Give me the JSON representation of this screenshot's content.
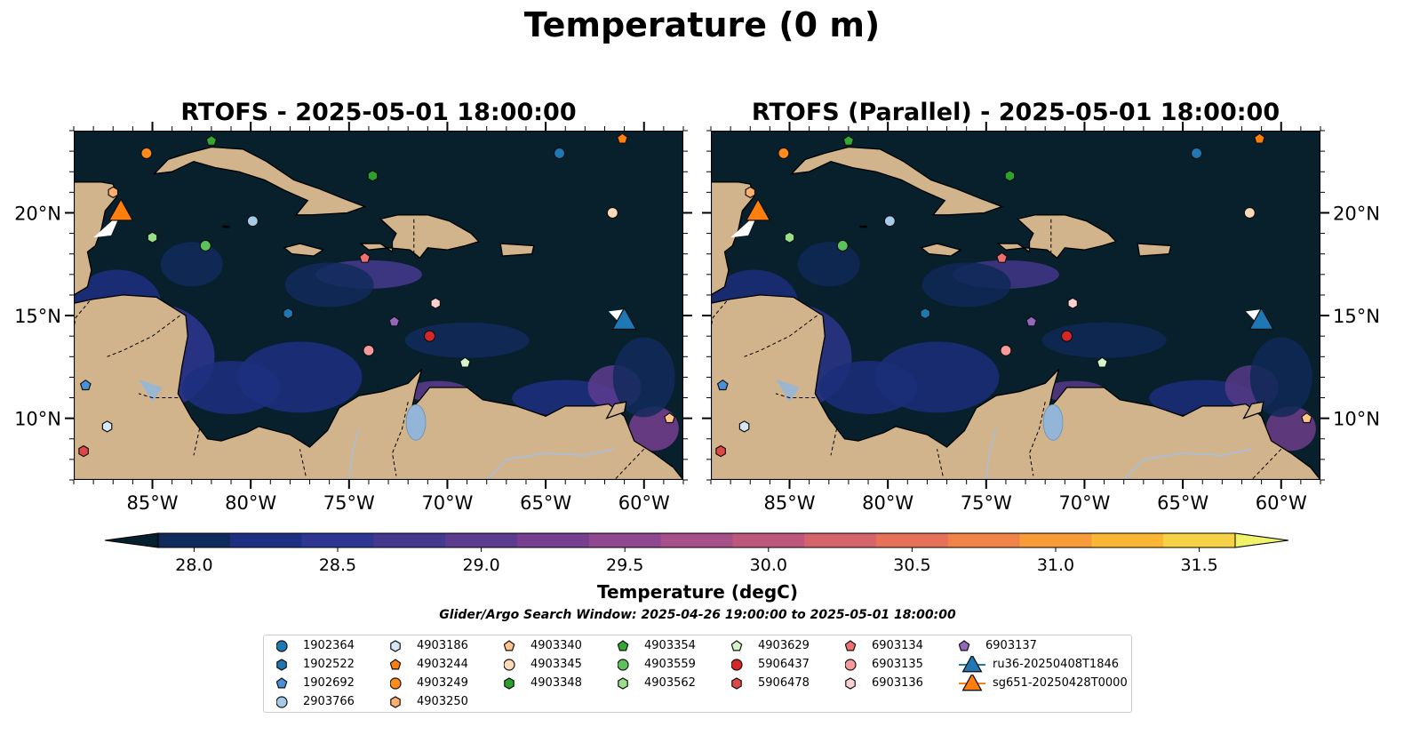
{
  "title": "Temperature (0 m)",
  "panels": [
    {
      "title": "RTOFS - 2025-05-01 18:00:00"
    },
    {
      "title": "RTOFS (Parallel) - 2025-05-01 18:00:00"
    }
  ],
  "map": {
    "lon_range": [
      -89,
      -58
    ],
    "lat_range": [
      7,
      24
    ],
    "lon_ticks": [
      "85°W",
      "80°W",
      "75°W",
      "70°W",
      "65°W",
      "60°W"
    ],
    "lon_tick_values": [
      -85,
      -80,
      -75,
      -70,
      -65,
      -60
    ],
    "lat_ticks": [
      "10°N",
      "15°N",
      "20°N"
    ],
    "lat_tick_values": [
      10,
      15,
      20
    ],
    "colors": {
      "ocean": "#081f2c",
      "land": "#d2b48c",
      "lake": "#93b6d8",
      "river": "#a6bfdc",
      "warm_band": "#2c3a8a"
    }
  },
  "colorbar": {
    "label": "Temperature (degC)",
    "ticks": [
      "28.0",
      "28.5",
      "29.0",
      "29.5",
      "30.0",
      "30.5",
      "31.0",
      "31.5"
    ],
    "tick_values": [
      28.0,
      28.5,
      29.0,
      29.5,
      30.0,
      30.5,
      31.0,
      31.5
    ],
    "range": [
      28.0,
      31.5
    ],
    "step": 0.25,
    "colormap": "thermal",
    "colors": [
      "#07202e",
      "#112a5c",
      "#1d2f80",
      "#2e3692",
      "#45398f",
      "#5d3c8f",
      "#763f8f",
      "#8e4790",
      "#a64e87",
      "#be577c",
      "#d4636a",
      "#e57158",
      "#f08448",
      "#f89c3a",
      "#fbb635",
      "#f7d247",
      "#eff36a"
    ],
    "extend": "both"
  },
  "search_window": "Glider/Argo Search Window: 2025-04-26 19:00:00 to 2025-05-01 18:00:00",
  "legend": {
    "items": [
      {
        "label": "1902364",
        "marker": "circle",
        "color": "#1f77b4"
      },
      {
        "label": "1902522",
        "marker": "hexagon",
        "color": "#1f77b4"
      },
      {
        "label": "1902692",
        "marker": "pentagon",
        "color": "#4a90d9"
      },
      {
        "label": "2903766",
        "marker": "circle",
        "color": "#a6cbe9"
      },
      {
        "label": "4903186",
        "marker": "hexagon",
        "color": "#d6e8f7"
      },
      {
        "label": "4903244",
        "marker": "pentagon",
        "color": "#ff7f0e"
      },
      {
        "label": "4903249",
        "marker": "circle",
        "color": "#ff8c1a"
      },
      {
        "label": "4903250",
        "marker": "hexagon",
        "color": "#ffae6b"
      },
      {
        "label": "4903340",
        "marker": "pentagon",
        "color": "#ffc48c"
      },
      {
        "label": "4903345",
        "marker": "circle",
        "color": "#fcd9b8"
      },
      {
        "label": "4903348",
        "marker": "hexagon",
        "color": "#2ca02c"
      },
      {
        "label": "4903354",
        "marker": "pentagon",
        "color": "#33a933"
      },
      {
        "label": "4903559",
        "marker": "circle",
        "color": "#5cc35c"
      },
      {
        "label": "4903562",
        "marker": "hexagon",
        "color": "#98df8a"
      },
      {
        "label": "4903629",
        "marker": "pentagon",
        "color": "#d4f5c9"
      },
      {
        "label": "5906437",
        "marker": "circle",
        "color": "#d62728"
      },
      {
        "label": "5906478",
        "marker": "hexagon",
        "color": "#e04848"
      },
      {
        "label": "6903134",
        "marker": "pentagon",
        "color": "#f07070"
      },
      {
        "label": "6903135",
        "marker": "circle",
        "color": "#f79a9a"
      },
      {
        "label": "6903136",
        "marker": "hexagon",
        "color": "#fcd0d0"
      },
      {
        "label": "6903137",
        "marker": "pentagon",
        "color": "#9467bd"
      },
      {
        "label": "ru36-20250408T1846",
        "marker": "triangle",
        "color": "#1f77b4"
      },
      {
        "label": "sg651-20250428T0000",
        "marker": "triangle",
        "color": "#ff7f0e"
      }
    ]
  },
  "observations": [
    {
      "id": "1902364",
      "lon": -64.3,
      "lat": 22.9
    },
    {
      "id": "1902522",
      "lon": -78.1,
      "lat": 15.1
    },
    {
      "id": "1902692",
      "lon": -88.4,
      "lat": 11.6
    },
    {
      "id": "2903766",
      "lon": -79.9,
      "lat": 19.6
    },
    {
      "id": "4903186",
      "lon": -87.3,
      "lat": 9.6
    },
    {
      "id": "4903244",
      "lon": -61.1,
      "lat": 23.6
    },
    {
      "id": "4903249",
      "lon": -85.3,
      "lat": 22.9
    },
    {
      "id": "4903250",
      "lon": -87.0,
      "lat": 21.0
    },
    {
      "id": "4903340",
      "lon": -58.7,
      "lat": 10.0
    },
    {
      "id": "4903345",
      "lon": -61.6,
      "lat": 20.0
    },
    {
      "id": "4903348",
      "lon": -73.8,
      "lat": 21.8
    },
    {
      "id": "4903354",
      "lon": -82.0,
      "lat": 23.5
    },
    {
      "id": "4903559",
      "lon": -82.3,
      "lat": 18.4
    },
    {
      "id": "4903562",
      "lon": -85.0,
      "lat": 18.8
    },
    {
      "id": "4903629",
      "lon": -69.1,
      "lat": 12.7
    },
    {
      "id": "5906437",
      "lon": -70.9,
      "lat": 14.0
    },
    {
      "id": "5906478",
      "lon": -88.5,
      "lat": 8.4
    },
    {
      "id": "6903134",
      "lon": -74.2,
      "lat": 17.8
    },
    {
      "id": "6903135",
      "lon": -74.0,
      "lat": 13.3
    },
    {
      "id": "6903136",
      "lon": -70.6,
      "lat": 15.6
    },
    {
      "id": "6903137",
      "lon": -72.7,
      "lat": 14.7
    }
  ],
  "gliders": [
    {
      "id": "ru36-20250408T1846",
      "lon": -61.0,
      "lat": 14.5
    },
    {
      "id": "sg651-20250428T0000",
      "lon": -86.6,
      "lat": 19.8
    }
  ]
}
